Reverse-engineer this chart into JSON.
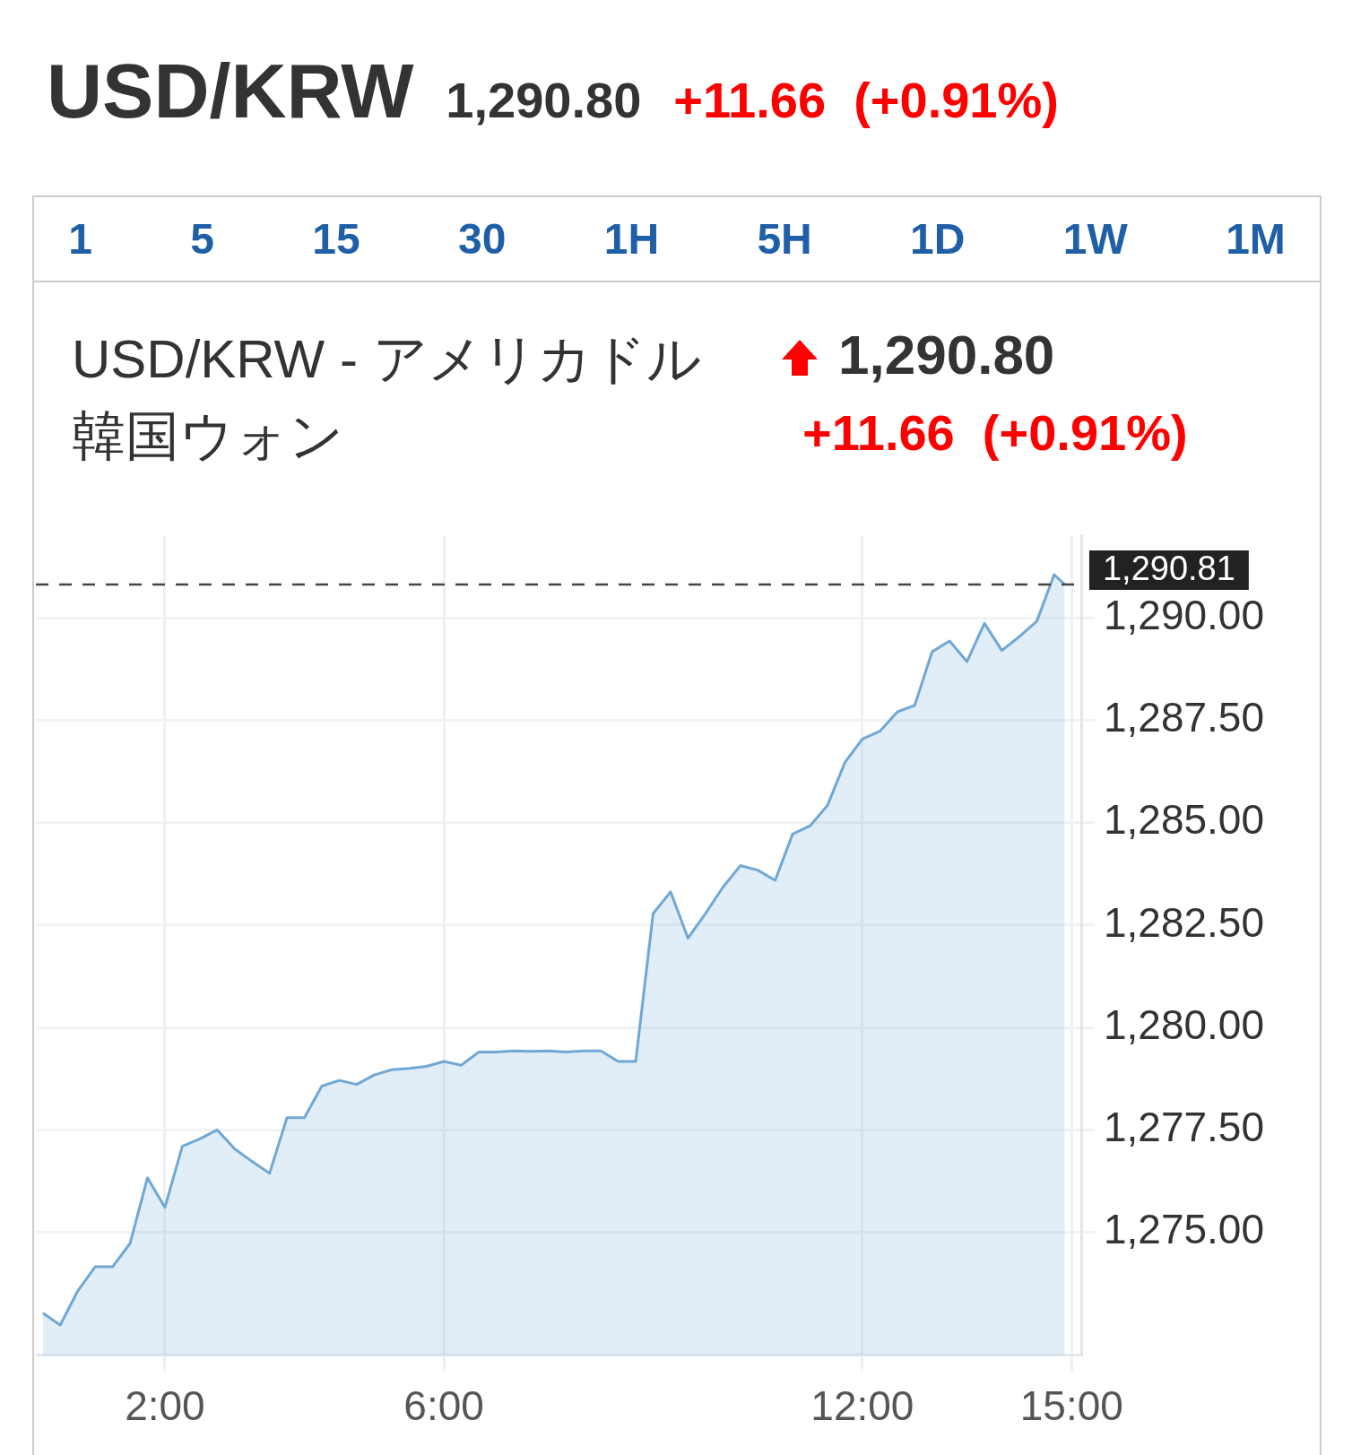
{
  "chart_data": {
    "type": "area",
    "title": "USD/KRW",
    "subtitle": "USD/KRW - アメリカドル韓国ウォン",
    "annotations": [
      "1,290.80",
      "+11.66  (+0.91%)",
      "1 5 15 30 1H 5H 1D 1W 1M",
      "1,290.80",
      "+11.66  (+0.91%)"
    ],
    "x": [
      0.25,
      0.5,
      0.75,
      1.0,
      1.25,
      1.5,
      1.75,
      2.0,
      2.25,
      2.5,
      2.75,
      3.0,
      3.25,
      3.5,
      3.75,
      4.0,
      4.25,
      4.5,
      4.75,
      5.0,
      5.25,
      5.5,
      5.75,
      6.0,
      6.25,
      6.5,
      6.75,
      7.0,
      7.25,
      7.5,
      7.75,
      8.0,
      8.25,
      8.5,
      8.75,
      9.0,
      9.25,
      9.5,
      9.75,
      10.0,
      10.25,
      10.5,
      10.75,
      11.0,
      11.25,
      11.5,
      11.75,
      12.0,
      12.25,
      12.5,
      12.75,
      13.0,
      13.25,
      13.5,
      13.75,
      14.0,
      14.25,
      14.5,
      14.75,
      14.9
    ],
    "series": [
      {
        "color": "#6fa8d6",
        "values": [
          1273.03,
          1272.74,
          1273.57,
          1274.16,
          1274.16,
          1274.73,
          1276.33,
          1275.61,
          1277.1,
          1277.28,
          1277.5,
          1277.04,
          1276.73,
          1276.44,
          1277.8,
          1277.8,
          1278.57,
          1278.71,
          1278.61,
          1278.84,
          1278.97,
          1279.0,
          1279.05,
          1279.17,
          1279.08,
          1279.4,
          1279.4,
          1279.43,
          1279.42,
          1279.43,
          1279.4,
          1279.43,
          1279.43,
          1279.17,
          1279.17,
          1282.78,
          1283.31,
          1282.18,
          1282.78,
          1283.42,
          1283.95,
          1283.84,
          1283.59,
          1284.72,
          1284.92,
          1285.42,
          1286.47,
          1287.04,
          1287.23,
          1287.7,
          1287.86,
          1289.17,
          1289.43,
          1288.93,
          1289.86,
          1289.2,
          1289.54,
          1289.91,
          1291.05,
          1290.81
        ]
      }
    ],
    "xlim": [
      0.15,
      15.15
    ],
    "xticks": [
      {
        "value": 2,
        "label": "2:00"
      },
      {
        "value": 6,
        "label": "6:00"
      },
      {
        "value": 12,
        "label": "12:00"
      },
      {
        "value": 15,
        "label": "15:00"
      }
    ],
    "ylim": [
      1272,
      1292
    ],
    "yticks": [
      {
        "value": 1275,
        "label": "1,275.00"
      },
      {
        "value": 1277.5,
        "label": "1,277.50"
      },
      {
        "value": 1280,
        "label": "1,280.00"
      },
      {
        "value": 1282.5,
        "label": "1,282.50"
      },
      {
        "value": 1285,
        "label": "1,285.00"
      },
      {
        "value": 1287.5,
        "label": "1,287.50"
      },
      {
        "value": 1290,
        "label": "1,290.00"
      }
    ],
    "ref_lines": [
      {
        "axis": "y",
        "value": 1290.81,
        "label": "1,290.81",
        "color": "#444444",
        "line_style": "dashed"
      }
    ],
    "grid": true,
    "legend": false
  }
}
